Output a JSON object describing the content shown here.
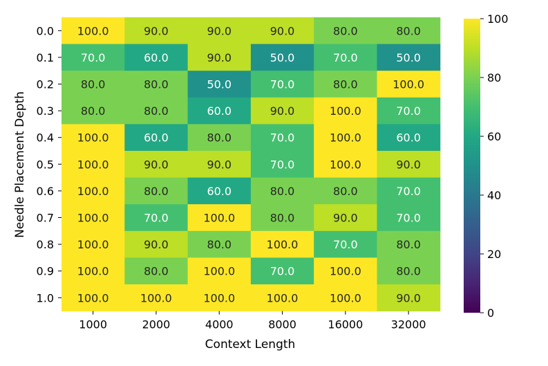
{
  "chart_data": {
    "type": "heatmap",
    "xlabel": "Context Length",
    "ylabel": "Needle Placement Depth",
    "x_categories": [
      "1000",
      "2000",
      "4000",
      "8000",
      "16000",
      "32000"
    ],
    "y_categories": [
      "0.0",
      "0.1",
      "0.2",
      "0.3",
      "0.4",
      "0.5",
      "0.6",
      "0.7",
      "0.8",
      "0.9",
      "1.0"
    ],
    "values": [
      [
        100.0,
        90.0,
        90.0,
        90.0,
        80.0,
        80.0
      ],
      [
        70.0,
        60.0,
        90.0,
        50.0,
        70.0,
        50.0
      ],
      [
        80.0,
        80.0,
        50.0,
        70.0,
        80.0,
        100.0
      ],
      [
        80.0,
        80.0,
        60.0,
        90.0,
        100.0,
        70.0
      ],
      [
        100.0,
        60.0,
        80.0,
        70.0,
        100.0,
        60.0
      ],
      [
        100.0,
        90.0,
        90.0,
        70.0,
        100.0,
        90.0
      ],
      [
        100.0,
        80.0,
        60.0,
        80.0,
        80.0,
        70.0
      ],
      [
        100.0,
        70.0,
        100.0,
        80.0,
        90.0,
        70.0
      ],
      [
        100.0,
        90.0,
        80.0,
        100.0,
        70.0,
        80.0
      ],
      [
        100.0,
        80.0,
        100.0,
        70.0,
        100.0,
        80.0
      ],
      [
        100.0,
        100.0,
        100.0,
        100.0,
        100.0,
        90.0
      ]
    ],
    "colormap": "viridis",
    "colorbar": {
      "min": 0,
      "max": 100,
      "ticks": [
        "0",
        "20",
        "40",
        "60",
        "80",
        "100"
      ]
    },
    "legend_placement": "right"
  }
}
